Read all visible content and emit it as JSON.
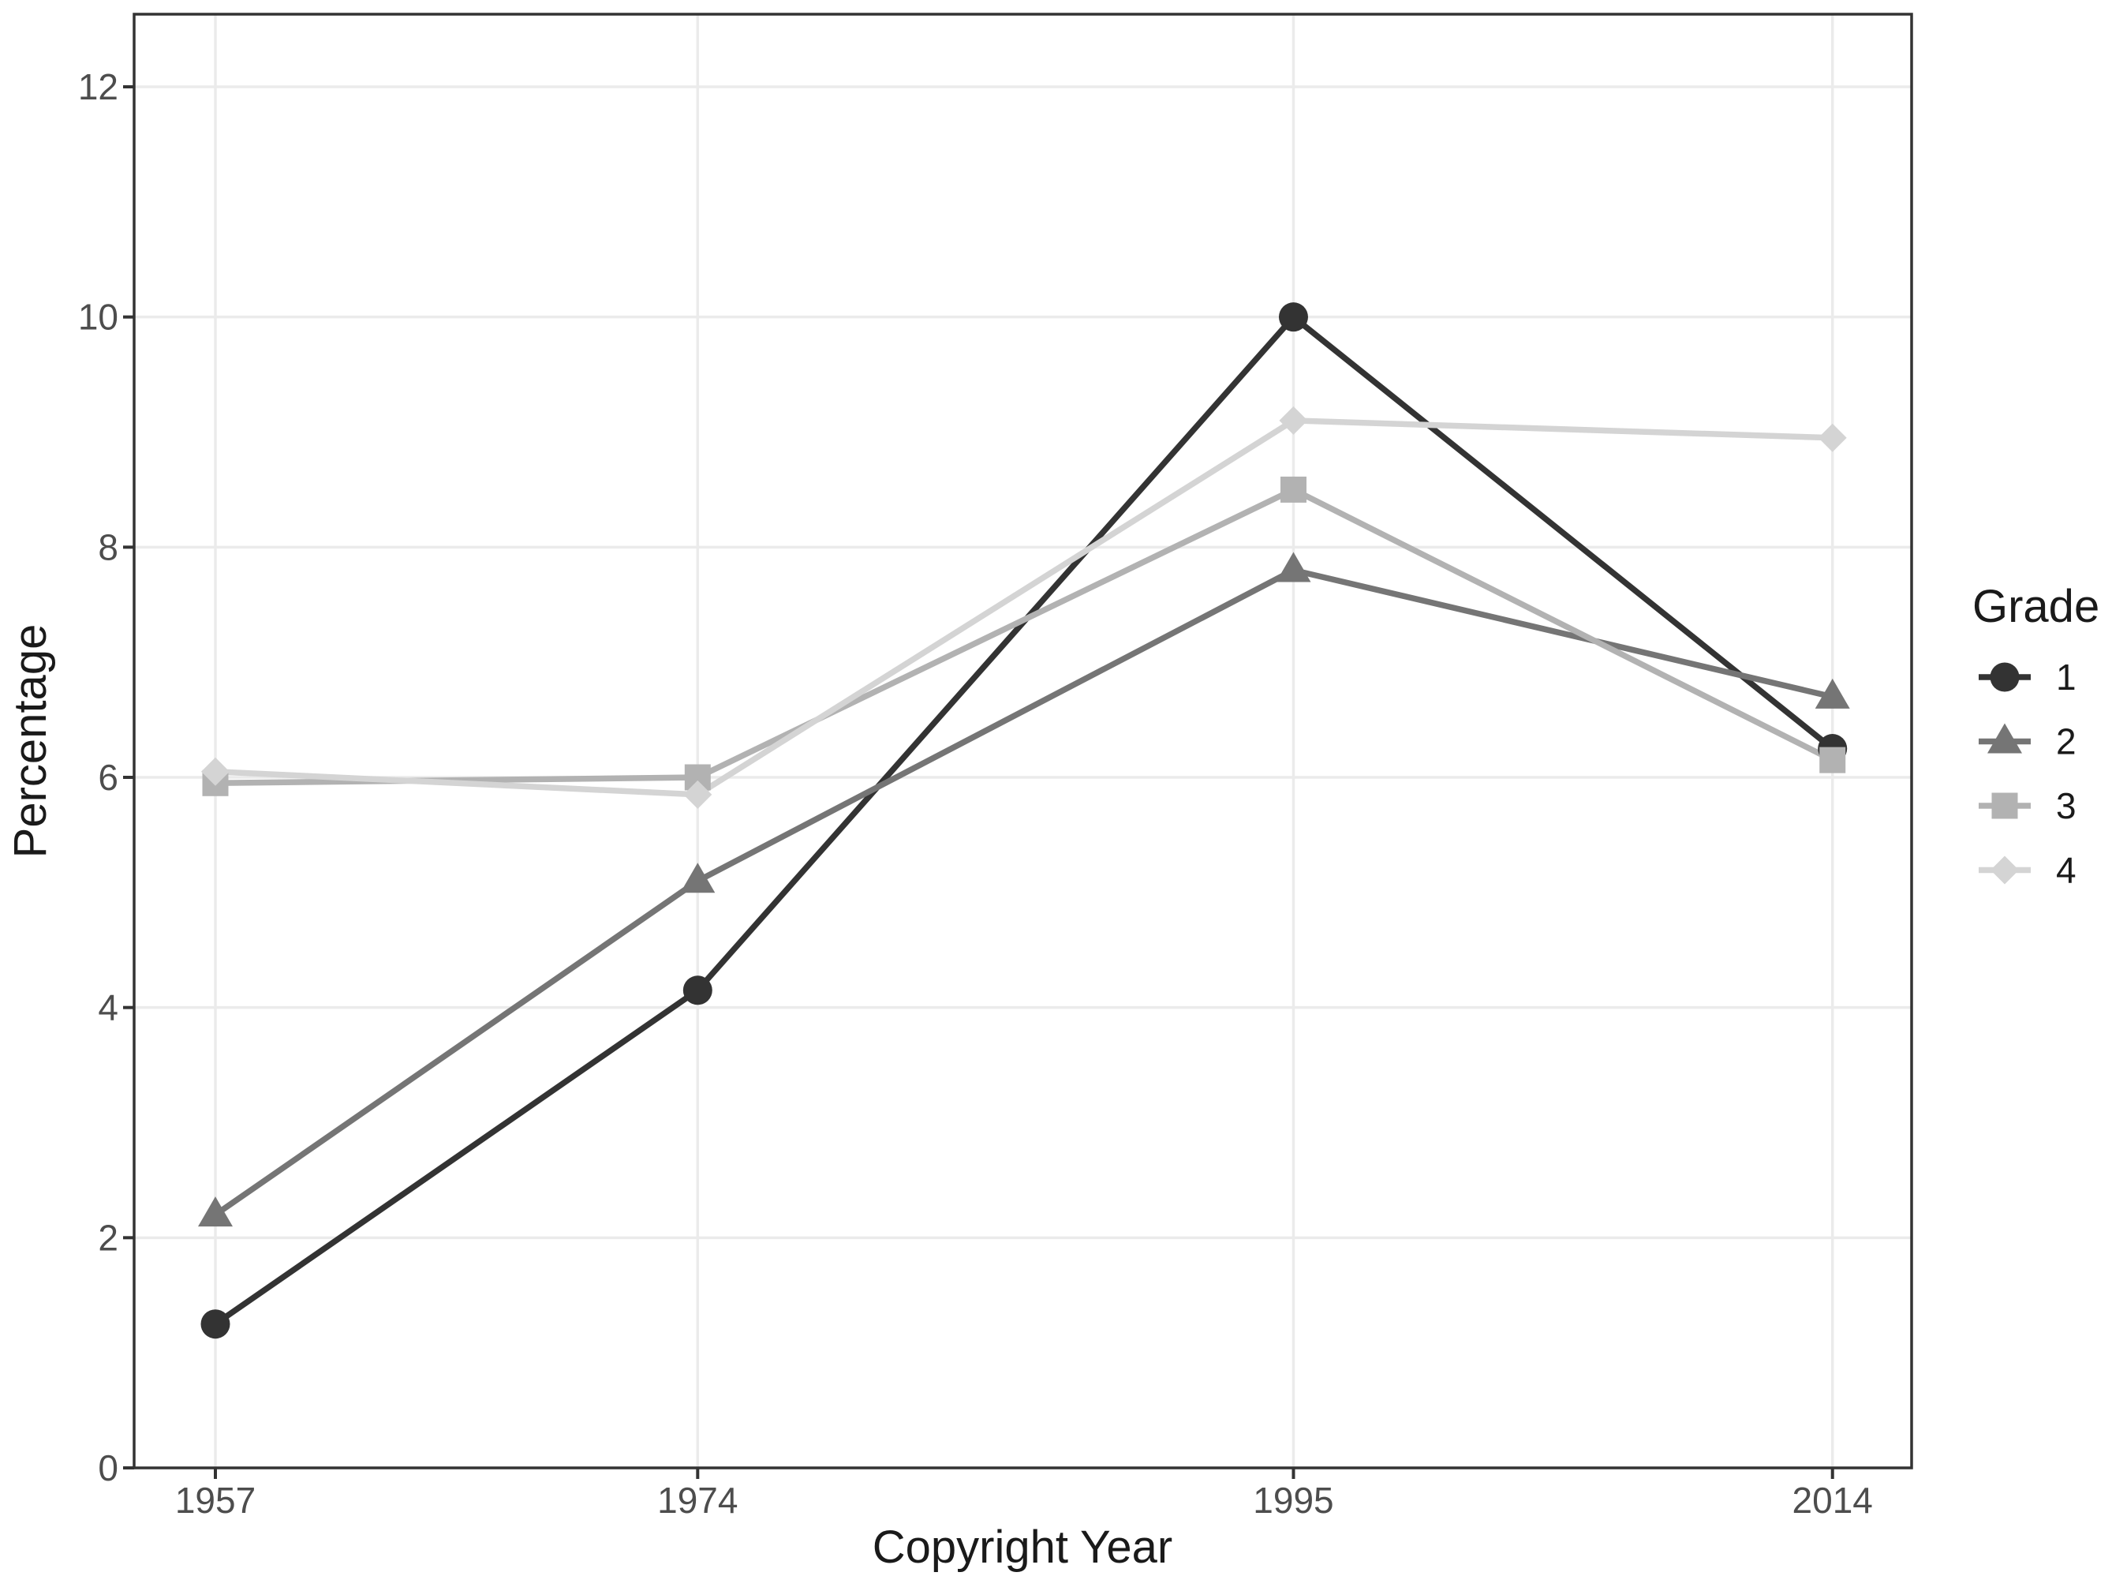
{
  "figure": {
    "background": "#ffffff"
  },
  "style": {
    "grid_color": "#ebebeb",
    "panel_border_color": "#333333",
    "tick_mark_color": "#333333",
    "tick_label_color": "#4d4d4d",
    "axis_title_color": "#1a1a1a"
  },
  "chart_data": {
    "type": "line",
    "title": "",
    "xlabel": "Copyright Year",
    "ylabel": "Percentage",
    "legend_title": "Grade",
    "legend_position": "right",
    "grid": "major-only",
    "x": [
      1957,
      1974,
      1995,
      2014
    ],
    "x_tick_labels": [
      "1957",
      "1974",
      "1995",
      "2014"
    ],
    "y_ticks": [
      0,
      2,
      4,
      6,
      8,
      10,
      12
    ],
    "ylim": [
      0,
      12.6
    ],
    "series": [
      {
        "name": "1",
        "marker": "circle",
        "color": "#333333",
        "values": [
          1.25,
          4.15,
          10.0,
          6.25
        ]
      },
      {
        "name": "2",
        "marker": "triangle",
        "color": "#757575",
        "values": [
          2.2,
          5.1,
          7.8,
          6.7
        ]
      },
      {
        "name": "3",
        "marker": "square",
        "color": "#b2b2b2",
        "values": [
          5.95,
          6.0,
          8.5,
          6.15
        ]
      },
      {
        "name": "4",
        "marker": "diamond",
        "color": "#d4d4d4",
        "values": [
          6.05,
          5.85,
          9.1,
          8.95
        ]
      }
    ]
  }
}
